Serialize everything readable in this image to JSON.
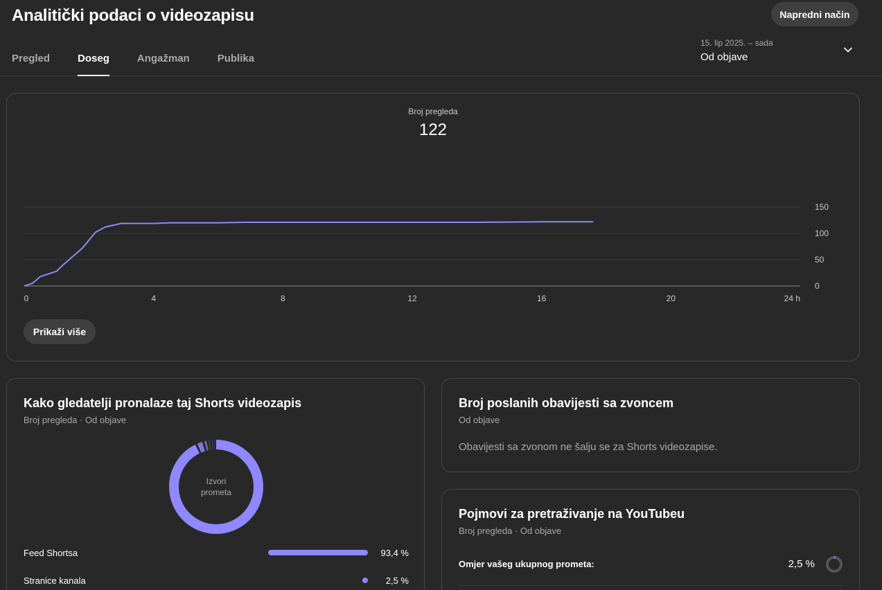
{
  "header": {
    "title": "Analitički podaci o videozapisu",
    "advanced_button": "Napredni način",
    "tabs": [
      {
        "label": "Pregled",
        "active": false
      },
      {
        "label": "Doseg",
        "active": true
      },
      {
        "label": "Angažman",
        "active": false
      },
      {
        "label": "Publika",
        "active": false
      }
    ],
    "date_range": {
      "range": "15. lip 2025. – sada",
      "period": "Od objave",
      "icon": "chevron-down-icon"
    }
  },
  "views_card": {
    "metric_label": "Broj pregleda",
    "metric_value": "122",
    "show_more_button": "Prikaži više"
  },
  "chart_data": {
    "type": "line",
    "series": [
      {
        "x": [
          0,
          0.25,
          0.5,
          0.7,
          1.0,
          1.2,
          1.5,
          1.8,
          2.0,
          2.2,
          2.5,
          3.0,
          3.5,
          4.0,
          4.5,
          5.0,
          6.0,
          6.8,
          7.0,
          8.0,
          10.0,
          12.0,
          14.0,
          16.0,
          17.6
        ],
        "y": [
          0,
          5,
          18,
          22,
          28,
          40,
          56,
          72,
          87,
          102,
          112,
          119,
          119,
          119,
          120,
          120,
          120,
          121,
          121,
          121,
          121,
          121,
          121,
          122,
          122
        ]
      }
    ],
    "x_ticks": [
      "0",
      "4",
      "8",
      "12",
      "16",
      "20",
      "24 h"
    ],
    "x_tick_values": [
      0,
      4,
      8,
      12,
      16,
      20,
      24
    ],
    "y_ticks": [
      "0",
      "50",
      "100",
      "150"
    ],
    "y_tick_values": [
      0,
      50,
      100,
      150
    ],
    "xlim": [
      0,
      24
    ],
    "ylim": [
      0,
      150
    ],
    "grid": true,
    "y_axis_position": "right",
    "line_color": "#8f88ff"
  },
  "traffic_card": {
    "title": "Kako gledatelji pronalaze taj Shorts videozapis",
    "subtitle": "Broj pregleda · Od objave",
    "donut_label": "Izvori prometa",
    "donut_segments": [
      {
        "value": 93.4,
        "color": "#8f88ff"
      },
      {
        "value": 2.5,
        "color": "#7e78e0"
      },
      {
        "value": 1.5,
        "color": "#6f6aa6"
      },
      {
        "value": 1.0,
        "color": "#5c5a7a"
      },
      {
        "value": 0.8,
        "color": "#4d4c60"
      },
      {
        "value": 0.8,
        "color": "#44434f"
      }
    ],
    "sources": [
      {
        "name": "Feed Shortsa",
        "value": 93.4,
        "pct": "93,4 %"
      },
      {
        "name": "Stranice kanala",
        "value": 2.5,
        "pct": "2,5 %"
      }
    ],
    "accent": "#8f88ff"
  },
  "bell_card": {
    "title": "Broj poslanih obavijesti sa zvoncem",
    "subtitle": "Od objave",
    "message": "Obavijesti sa zvonom ne šalju se za Shorts videozapise."
  },
  "search_card": {
    "title": "Pojmovi za pretraživanje na YouTubeu",
    "subtitle": "Broj pregleda · Od objave",
    "ratio_label": "Omjer vašeg ukupnog prometa:",
    "ratio_value": "2,5 %",
    "ratio_fraction": 0.025
  }
}
